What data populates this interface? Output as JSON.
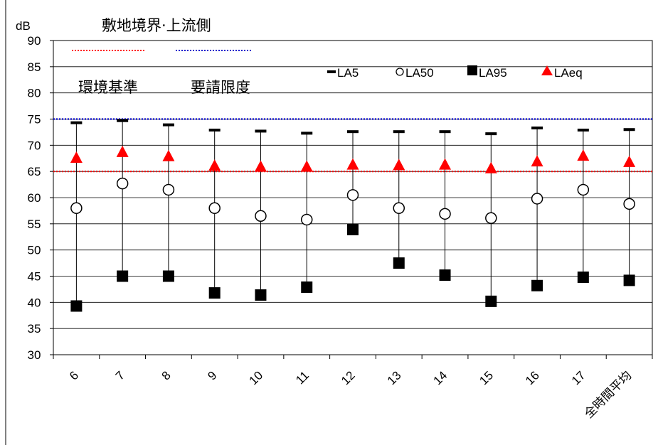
{
  "chart_data": {
    "type": "scatter",
    "title": "敷地境界·上流側",
    "ylabel": "dB",
    "xlabel": "",
    "ylim": [
      30,
      90
    ],
    "yticks": [
      30,
      35,
      40,
      45,
      50,
      55,
      60,
      65,
      70,
      75,
      80,
      85,
      90
    ],
    "grid": "horizontal",
    "legend_placement": "top-right",
    "categories": [
      "6",
      "7",
      "8",
      "9",
      "10",
      "11",
      "12",
      "13",
      "14",
      "15",
      "16",
      "17",
      "全時間平均"
    ],
    "series": [
      {
        "name": "LA5",
        "marker": "dash",
        "color": "#000000",
        "values": [
          74.3,
          74.7,
          73.9,
          72.9,
          72.7,
          72.3,
          72.6,
          72.6,
          72.6,
          72.2,
          73.3,
          72.9,
          73.0
        ]
      },
      {
        "name": "LA50",
        "marker": "circle-open",
        "color": "#000000",
        "values": [
          58.0,
          62.7,
          61.5,
          58.0,
          56.5,
          55.8,
          60.5,
          58.0,
          56.9,
          56.1,
          59.8,
          61.5,
          58.8
        ]
      },
      {
        "name": "LA95",
        "marker": "square",
        "color": "#000000",
        "values": [
          39.3,
          45.0,
          45.0,
          41.8,
          41.4,
          42.9,
          53.9,
          47.5,
          45.2,
          40.2,
          43.2,
          44.8,
          44.2
        ]
      },
      {
        "name": "LAeq",
        "marker": "triangle",
        "color": "#ff0000",
        "values": [
          67.6,
          68.7,
          67.9,
          66.1,
          65.9,
          65.9,
          66.3,
          66.2,
          66.3,
          65.6,
          66.9,
          68.0,
          66.8
        ]
      }
    ],
    "reference_lines": [
      {
        "label": "環境基準",
        "value": 65,
        "color": "#ff0000",
        "style": "dotted"
      },
      {
        "label": "要請限度",
        "value": 75,
        "color": "#0000cc",
        "style": "dotted"
      }
    ]
  }
}
